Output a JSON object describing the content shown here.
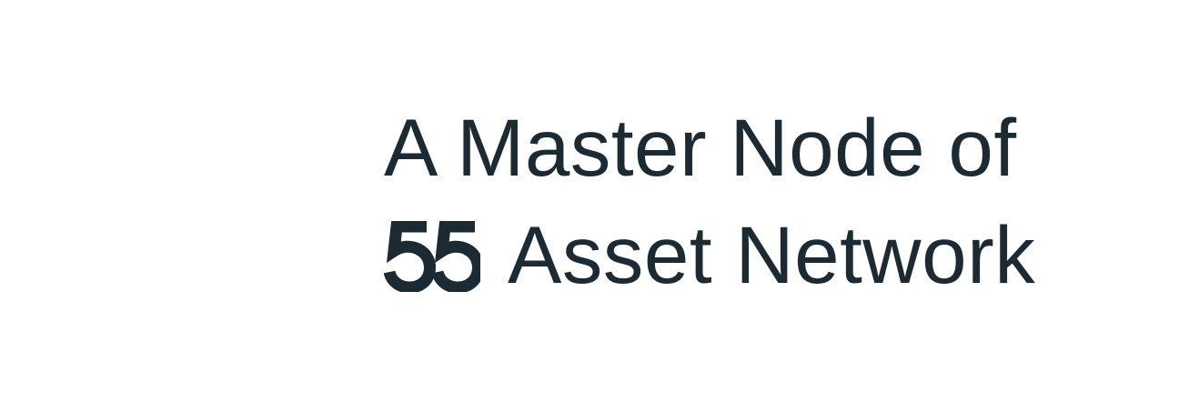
{
  "headline": {
    "line1": "A Master Node of",
    "line2_text": "Asset Network"
  },
  "logo": {
    "icon": "fifty-five-logo-icon",
    "label": "55"
  },
  "colors": {
    "text": "#1c2a33",
    "background": "#ffffff"
  }
}
